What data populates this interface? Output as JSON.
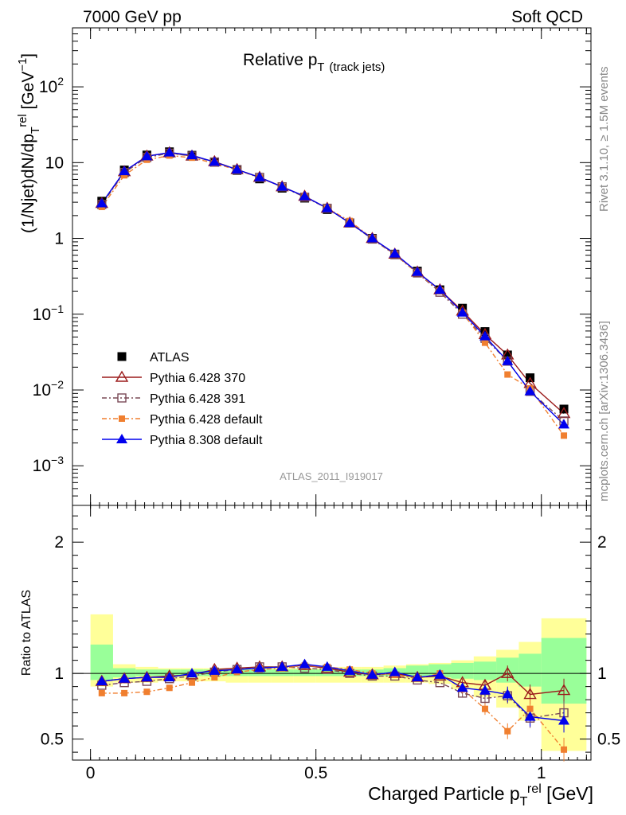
{
  "header": {
    "left": "7000 GeV pp",
    "right": "Soft QCD"
  },
  "side_text": {
    "rivet": "Rivet 3.1.10, ≥ 1.5M events",
    "mcplots": "mcplots.cern.ch [arXiv:1306.3436]"
  },
  "chart_data": {
    "type": "scatter",
    "title": "Relative p_T (track jets)",
    "analysis_id": "ATLAS_2011_I919017",
    "xlabel": "Charged Particle p_T^rel [GeV]",
    "ylabel": "(1/Njet)dN/dp_T^rel [GeV^-1]",
    "ratio_ylabel": "Ratio to ATLAS",
    "xlim": [
      -0.04,
      1.11
    ],
    "ylim": [
      0.0003,
      600
    ],
    "yscale": "log",
    "ratio_ylim": [
      0.34,
      2.28
    ],
    "x_ticks": [
      "0",
      "0.5",
      "1"
    ],
    "y_ticks": [
      "10^-3",
      "10^-2",
      "10^-1",
      "1",
      "10",
      "10^2"
    ],
    "ratio_ticks": [
      "0.5",
      "1",
      "2"
    ],
    "legend_position": "lower-left",
    "x": [
      0.025,
      0.075,
      0.125,
      0.175,
      0.225,
      0.275,
      0.325,
      0.375,
      0.425,
      0.475,
      0.525,
      0.575,
      0.625,
      0.675,
      0.725,
      0.775,
      0.825,
      0.875,
      0.925,
      0.975,
      1.05
    ],
    "series": [
      {
        "name": "ATLAS",
        "color": "#000000",
        "marker": "filled-square",
        "values": [
          3.1,
          8.0,
          12.6,
          13.9,
          12.5,
          10.1,
          7.9,
          6.1,
          4.6,
          3.4,
          2.4,
          1.6,
          1.0,
          0.62,
          0.37,
          0.21,
          0.12,
          0.059,
          0.029,
          0.0145,
          0.0056
        ]
      },
      {
        "name": "Pythia 6.428 370",
        "color": "#9b1c1c",
        "marker": "open-triangle",
        "line": "solid",
        "values": [
          2.9,
          7.6,
          12.2,
          13.5,
          12.2,
          10.3,
          8.1,
          6.4,
          4.8,
          3.6,
          2.5,
          1.6,
          1.0,
          0.62,
          0.36,
          0.21,
          0.11,
          0.054,
          0.029,
          0.0122,
          0.0049
        ],
        "ratio": [
          0.94,
          0.96,
          0.97,
          0.98,
          0.99,
          1.03,
          1.04,
          1.05,
          1.05,
          1.06,
          1.04,
          1.01,
          0.99,
          1.0,
          0.97,
          0.98,
          0.93,
          0.91,
          1.0,
          0.84,
          0.87
        ]
      },
      {
        "name": "Pythia 6.428 391",
        "color": "#7a4a57",
        "marker": "open-square",
        "line": "dash-dot",
        "values": [
          2.8,
          7.4,
          11.7,
          13.3,
          12.2,
          10.2,
          8.1,
          6.4,
          4.8,
          3.5,
          2.5,
          1.6,
          0.98,
          0.61,
          0.35,
          0.195,
          0.1,
          0.048,
          0.024,
          0.0096,
          0.0039
        ],
        "ratio": [
          0.91,
          0.93,
          0.94,
          0.96,
          0.98,
          1.01,
          1.03,
          1.05,
          1.05,
          1.04,
          1.03,
          1.0,
          0.98,
          0.98,
          0.95,
          0.93,
          0.85,
          0.81,
          0.83,
          0.66,
          0.7
        ]
      },
      {
        "name": "Pythia 6.428 default",
        "color": "#f07f2f",
        "marker": "filled-small-square",
        "line": "dash-dot",
        "values": [
          2.6,
          6.8,
          10.9,
          12.4,
          11.6,
          9.8,
          8.0,
          6.3,
          4.8,
          3.6,
          2.5,
          1.7,
          1.0,
          0.62,
          0.35,
          0.205,
          0.105,
          0.042,
          0.016,
          0.0105,
          0.0025
        ],
        "ratio": [
          0.85,
          0.85,
          0.86,
          0.89,
          0.93,
          0.97,
          1.01,
          1.03,
          1.04,
          1.06,
          1.05,
          1.03,
          1.0,
          0.99,
          0.96,
          1.0,
          0.88,
          0.73,
          0.56,
          0.73,
          0.42
        ]
      },
      {
        "name": "Pythia 8.308 default",
        "color": "#0000ee",
        "marker": "filled-triangle",
        "line": "solid",
        "values": [
          2.9,
          7.7,
          12.1,
          13.6,
          12.5,
          10.2,
          8.1,
          6.4,
          4.8,
          3.6,
          2.5,
          1.6,
          1.0,
          0.63,
          0.36,
          0.21,
          0.105,
          0.051,
          0.024,
          0.0096,
          0.0035
        ],
        "ratio": [
          0.94,
          0.96,
          0.97,
          0.97,
          1.0,
          1.02,
          1.03,
          1.04,
          1.05,
          1.07,
          1.05,
          1.02,
          0.99,
          1.01,
          0.97,
          0.99,
          0.89,
          0.87,
          0.84,
          0.67,
          0.64
        ]
      }
    ],
    "ratio_bands": {
      "x_edges": [
        0.0,
        0.05,
        0.1,
        0.15,
        0.2,
        0.25,
        0.3,
        0.35,
        0.4,
        0.45,
        0.5,
        0.55,
        0.6,
        0.65,
        0.7,
        0.75,
        0.8,
        0.85,
        0.9,
        0.95,
        1.0,
        1.1
      ],
      "stat_lo": [
        0.95,
        0.97,
        0.98,
        0.98,
        0.98,
        0.98,
        0.98,
        0.98,
        0.98,
        0.98,
        0.98,
        0.98,
        0.98,
        0.98,
        0.97,
        0.97,
        0.96,
        0.95,
        0.93,
        0.9,
        0.77
      ],
      "stat_hi": [
        1.22,
        1.04,
        1.03,
        1.03,
        1.03,
        1.03,
        1.03,
        1.03,
        1.03,
        1.03,
        1.03,
        1.03,
        1.03,
        1.04,
        1.06,
        1.07,
        1.08,
        1.09,
        1.12,
        1.15,
        1.27
      ],
      "total_lo": [
        0.9,
        0.93,
        0.93,
        0.94,
        0.94,
        0.94,
        0.93,
        0.93,
        0.93,
        0.93,
        0.93,
        0.93,
        0.93,
        0.93,
        0.93,
        0.92,
        0.88,
        0.82,
        0.74,
        0.64,
        0.41
      ],
      "total_hi": [
        1.45,
        1.07,
        1.05,
        1.04,
        1.04,
        1.04,
        1.04,
        1.04,
        1.04,
        1.04,
        1.04,
        1.05,
        1.05,
        1.06,
        1.07,
        1.08,
        1.1,
        1.13,
        1.18,
        1.24,
        1.42
      ]
    }
  }
}
